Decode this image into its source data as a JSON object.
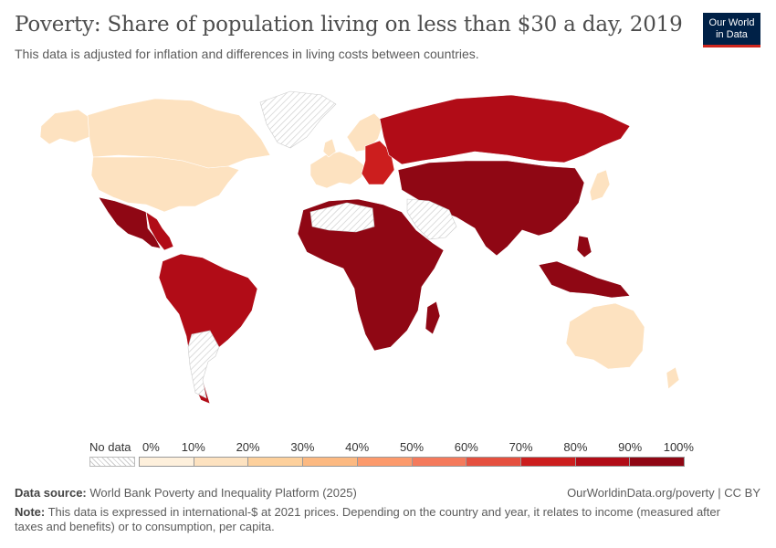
{
  "header": {
    "title": "Poverty: Share of population living on less than $30 a day, 2019",
    "subtitle": "This data is adjusted for inflation and differences in living costs between countries."
  },
  "logo": {
    "line1": "Our World",
    "line2": "in Data",
    "bg_color": "#002147",
    "accent_color": "#ce261e"
  },
  "legend": {
    "no_data_label": "No data",
    "ticks": [
      "0%",
      "10%",
      "20%",
      "30%",
      "40%",
      "50%",
      "60%",
      "70%",
      "80%",
      "90%",
      "100%"
    ],
    "colors": [
      "#fef0dc",
      "#fde2c0",
      "#fdd09c",
      "#fcb981",
      "#fc9a6c",
      "#f47a5c",
      "#e5503f",
      "#cc1e1e",
      "#b10c17",
      "#8f0714"
    ]
  },
  "map_colors": {
    "ocean": "#ffffff",
    "north_america": "#fde2c0",
    "latin_america": "#b10c17",
    "mexico": "#8f0714",
    "europe_west": "#fde2c0",
    "europe_east": "#cc1e1e",
    "russia": "#b10c17",
    "asia": "#8f0714",
    "africa": "#8f0714",
    "australia": "#fde2c0",
    "japan": "#fde2c0",
    "no_data": "hatched"
  },
  "footer": {
    "source_label": "Data source:",
    "source_text": "World Bank Poverty and Inequality Platform (2025)",
    "link": "OurWorldinData.org/poverty | CC BY",
    "note_label": "Note:",
    "note_text": "This data is expressed in international-$ at 2021 prices. Depending on the country and year, it relates to income (measured after taxes and benefits) or to consumption, per capita."
  }
}
